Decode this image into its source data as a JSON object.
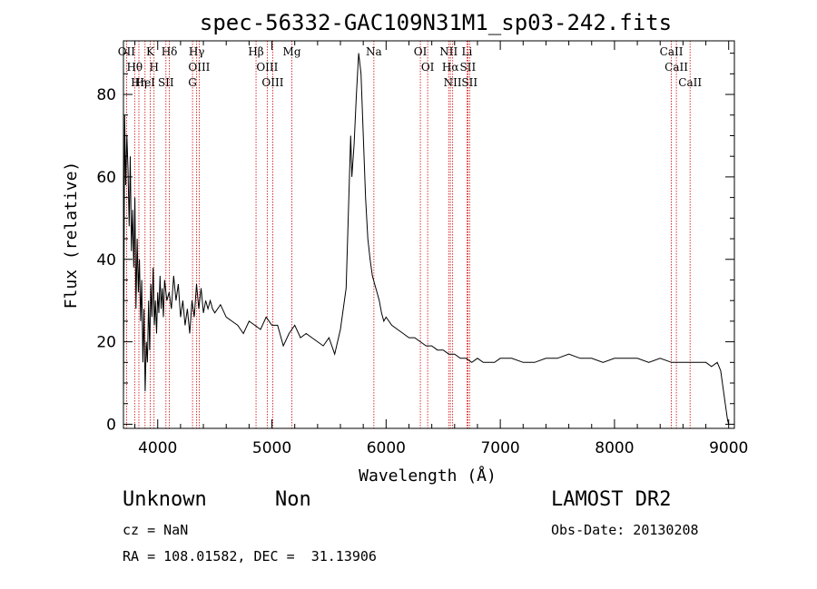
{
  "chart_data": {
    "type": "line",
    "title": "spec-56332-GAC109N31M1_sp03-242.fits",
    "xlabel": "Wavelength (Å)",
    "ylabel": "Flux (relative)",
    "xlim": [
      3700,
      9050
    ],
    "ylim": [
      -1,
      93
    ],
    "xticks": [
      4000,
      5000,
      6000,
      7000,
      8000,
      9000
    ],
    "yticks": [
      0,
      20,
      40,
      60,
      80
    ],
    "grid": false,
    "series": [
      {
        "x": [
          3700,
          3710,
          3720,
          3730,
          3740,
          3750,
          3760,
          3770,
          3780,
          3790,
          3800,
          3810,
          3820,
          3830,
          3840,
          3850,
          3860,
          3870,
          3880,
          3890,
          3900,
          3910,
          3920,
          3930,
          3940,
          3950,
          3960,
          3970,
          3980,
          3990,
          4000,
          4010,
          4020,
          4030,
          4040,
          4050,
          4060,
          4080,
          4100,
          4120,
          4140,
          4160,
          4180,
          4200,
          4220,
          4240,
          4260,
          4280,
          4300,
          4320,
          4340,
          4360,
          4380,
          4400,
          4420,
          4440,
          4460,
          4480,
          4500,
          4550,
          4600,
          4650,
          4700,
          4750,
          4800,
          4850,
          4900,
          4950,
          5000,
          5050,
          5100,
          5150,
          5200,
          5250,
          5300,
          5350,
          5400,
          5450,
          5500,
          5550,
          5600,
          5650,
          5690,
          5700,
          5720,
          5740,
          5760,
          5780,
          5800,
          5820,
          5840,
          5860,
          5880,
          5900,
          5920,
          5940,
          5960,
          5980,
          6000,
          6050,
          6100,
          6150,
          6200,
          6250,
          6300,
          6350,
          6400,
          6450,
          6500,
          6550,
          6600,
          6650,
          6700,
          6750,
          6800,
          6850,
          6900,
          6950,
          7000,
          7100,
          7200,
          7300,
          7400,
          7500,
          7600,
          7700,
          7800,
          7900,
          8000,
          8100,
          8200,
          8300,
          8400,
          8500,
          8600,
          8700,
          8800,
          8850,
          8900,
          8930,
          8950,
          8970,
          8990,
          9000,
          9010
        ],
        "y": [
          5,
          75,
          58,
          70,
          62,
          48,
          65,
          42,
          52,
          38,
          55,
          28,
          45,
          32,
          40,
          25,
          35,
          15,
          28,
          8,
          20,
          15,
          30,
          18,
          34,
          26,
          38,
          24,
          30,
          22,
          32,
          27,
          36,
          28,
          33,
          26,
          35,
          30,
          32,
          28,
          36,
          30,
          34,
          26,
          30,
          24,
          28,
          22,
          30,
          26,
          34,
          28,
          33,
          27,
          30,
          28,
          30,
          28,
          27,
          29,
          26,
          25,
          24,
          22,
          25,
          24,
          23,
          26,
          24,
          24,
          19,
          22,
          24,
          21,
          22,
          21,
          20,
          19,
          21,
          17,
          23,
          33,
          70,
          60,
          68,
          80,
          90,
          85,
          70,
          55,
          45,
          40,
          36,
          34,
          32,
          30,
          27,
          25,
          26,
          24,
          23,
          22,
          21,
          21,
          20,
          19,
          19,
          18,
          18,
          17,
          17,
          16,
          16,
          15,
          16,
          15,
          15,
          15,
          16,
          16,
          15,
          15,
          16,
          16,
          17,
          16,
          16,
          15,
          16,
          16,
          16,
          15,
          16,
          15,
          15,
          15,
          15,
          14,
          15,
          13,
          9,
          5,
          1,
          0,
          0
        ]
      }
    ],
    "emission_lines": [
      {
        "label": "OII",
        "x": 3727
      },
      {
        "label": "Hθ",
        "x": 3798
      },
      {
        "label": "Hη",
        "x": 3835
      },
      {
        "label": "HeI",
        "x": 3889
      },
      {
        "label": "K",
        "x": 3934
      },
      {
        "label": "H",
        "x": 3968
      },
      {
        "label": "Hδ",
        "x": 4102
      },
      {
        "label": "SII",
        "x": 4072
      },
      {
        "label": "Hγ",
        "x": 4341
      },
      {
        "label": "OIII",
        "x": 4363
      },
      {
        "label": "G",
        "x": 4305
      },
      {
        "label": "Hβ",
        "x": 4861
      },
      {
        "label": "OIII",
        "x": 4959
      },
      {
        "label": "OIII",
        "x": 5007
      },
      {
        "label": "Mg",
        "x": 5175
      },
      {
        "label": "Na",
        "x": 5893
      },
      {
        "label": "OI",
        "x": 6300
      },
      {
        "label": "OI",
        "x": 6364
      },
      {
        "label": "NII",
        "x": 6548
      },
      {
        "label": "Hα",
        "x": 6563
      },
      {
        "label": "NII",
        "x": 6583
      },
      {
        "label": "Li",
        "x": 6708
      },
      {
        "label": "SII",
        "x": 6716
      },
      {
        "label": "SII",
        "x": 6731
      },
      {
        "label": "CaII",
        "x": 8498
      },
      {
        "label": "CaII",
        "x": 8542
      },
      {
        "label": "CaII",
        "x": 8662
      }
    ]
  },
  "info": {
    "object_class": "Unknown",
    "object_subclass": "Non",
    "survey": "LAMOST DR2",
    "cz": "cz = NaN",
    "obs_date": "Obs-Date: 20130208",
    "coords": "RA = 108.01582, DEC =  31.13906"
  },
  "colors": {
    "axis": "#000000",
    "spectrum": "#000000",
    "line_marker": "#cc0000"
  }
}
